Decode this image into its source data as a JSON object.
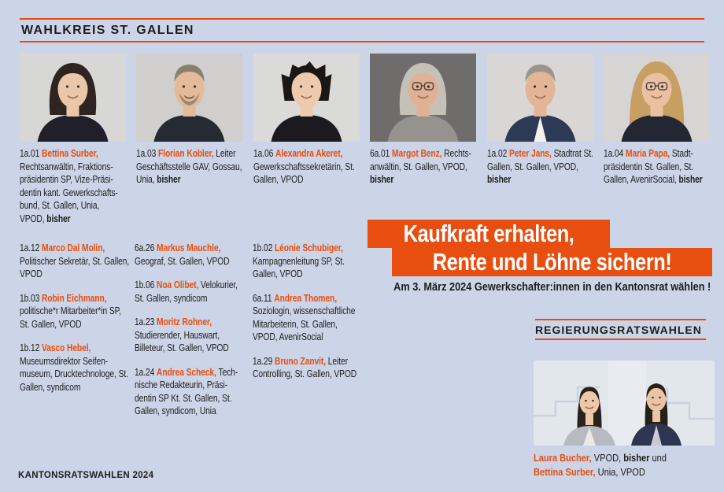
{
  "page": {
    "background_color": "#ccd4e7",
    "accent_color": "#e84e0f",
    "text_color": "#1d1d1b"
  },
  "header": {
    "title": "WAHLKREIS ST. GALLEN"
  },
  "candidates": [
    {
      "number": "1a.01",
      "name": "Bettina Surber,",
      "text": "Rechtsanwältin, Fraktions­präsidentin SP, Vize-Präsi­dentin kant. Gewerkschafts­bund, St. Gallen, Unia, VPOD,",
      "bold": "bisher",
      "portrait": {
        "style": "bob",
        "bg": "#d7d7d5",
        "hair": "#2e2520",
        "skin": "#ecc6a9",
        "shirt": "#20202a"
      }
    },
    {
      "number": "1a.03",
      "name": "Florian Kobler,",
      "text": "Leiter Geschäftsstelle GAV, Gossau, Unia,",
      "bold": "bisher",
      "portrait": {
        "style": "short",
        "beard": true,
        "bg": "#d0cfcd",
        "hair": "#8b8070",
        "skin": "#e5ba98",
        "shirt": "#262a33"
      }
    },
    {
      "number": "1a.06",
      "name": "Alexandra Akeret,",
      "text": "Gewerkschaftssekretärin, St. Gallen, VPOD",
      "bold": "",
      "portrait": {
        "style": "spiky",
        "bg": "#dadad8",
        "hair": "#1a1714",
        "skin": "#edc9ad",
        "shirt": "#1b1b1f"
      }
    },
    {
      "number": "6a.01",
      "name": "Margot Benz,",
      "text": "Rechts­anwältin, St. Gallen, VPOD,",
      "bold": "bisher",
      "portrait": {
        "style": "graybob",
        "glasses": true,
        "bg": "#6f6d6b",
        "hair": "#c6c0b6",
        "skin": "#e0b194",
        "shirt": "#96928d"
      }
    },
    {
      "number": "1a.02",
      "name": "Peter Jans,",
      "text": "Stadtrat St. Gallen, St. Gallen, VPOD,",
      "bold": "bisher",
      "portrait": {
        "style": "short",
        "bg": "#d8d7d5",
        "hair": "#9b948a",
        "skin": "#e3b496",
        "shirt": "#2c3a56",
        "collar": "#f2f1ef"
      }
    },
    {
      "number": "1a.04",
      "name": "Maria Papa,",
      "text": "Stadt­präsidentin St. Gallen, St. Gallen, AvenirSocial,",
      "bold": "bisher",
      "portrait": {
        "style": "long",
        "glasses": true,
        "bg": "#d6d5d3",
        "hair": "#c79f62",
        "skin": "#eac0a0",
        "shirt": "#232734"
      }
    }
  ],
  "lists": [
    {
      "entries": [
        {
          "number": "1a.12",
          "name": "Marco Dal Molin,",
          "text": "Politischer Sekretär, St. Gallen, VPOD",
          "bold": ""
        },
        {
          "number": "1b.03",
          "name": "Robin Eichmann,",
          "text": "politische*r Mitarbeiter*in SP, St. Gallen, VPOD",
          "bold": ""
        },
        {
          "number": "1b.12",
          "name": "Vasco Hebel,",
          "text": "Museumsdirektor Seifen­museum, Drucktechnologe, St. Gallen, syndicom",
          "bold": ""
        }
      ]
    },
    {
      "entries": [
        {
          "number": "6a.26",
          "name": "Markus Mauchle,",
          "text": "Geograf, St. Gallen, VPOD",
          "bold": ""
        },
        {
          "number": "1b.06",
          "name": "Noa Olibet,",
          "text": "Velokurier, St. Gallen, syndicom",
          "bold": ""
        },
        {
          "number": "1a.23",
          "name": "Moritz Rohner,",
          "text": "Studierender, Hauswart, Billeteur, St. Gallen, VPOD",
          "bold": ""
        },
        {
          "number": "1a.24",
          "name": "Andrea Scheck,",
          "text": "Tech­nische Redakteurin, Präsi­dentin SP Kt. St. Gallen, St. Gallen, syndicom, Unia",
          "bold": ""
        }
      ]
    },
    {
      "entries": [
        {
          "number": "1b.02",
          "name": "Léonie Schubiger,",
          "text": "Kampagnenleitung SP, St. Gallen, VPOD",
          "bold": ""
        },
        {
          "number": "6a.11",
          "name": "Andrea Thomen,",
          "text": "Soziologin, wissenschaftliche Mitarbeiterin, St. Gallen, VPOD, AvenirSocial",
          "bold": ""
        },
        {
          "number": "1a.29",
          "name": "Bruno Zanvit,",
          "text": "Leiter Controlling, St. Gallen, VPOD",
          "bold": ""
        }
      ]
    }
  ],
  "slogan": {
    "line1": "Kaufkraft erhalten,",
    "line2": "Rente und Löhne sichern!",
    "subline": "Am 3. März 2024 Gewerkschafter:innen in den Kantonsrat wählen !"
  },
  "regierungsrat": {
    "title": "REGIERUNGSRATSWAHLEN",
    "photo": {
      "style": "duo",
      "bg": "#e2e7ec",
      "persons": [
        {
          "hair": "#2b211c",
          "skin": "#eccaa9",
          "jacket": "#b7bac1",
          "top": "#edeae6"
        },
        {
          "hair": "#262019",
          "skin": "#eac5a5",
          "jacket": "#2e3550",
          "top": "#c9cbd1"
        }
      ]
    },
    "caption_lines": [
      [
        {
          "text": "Laura Bucher,",
          "style": "name"
        },
        {
          "text": " VPOD, ",
          "style": "plain"
        },
        {
          "text": "bisher",
          "style": "bold"
        },
        {
          "text": " und",
          "style": "plain"
        }
      ],
      [
        {
          "text": "Bettina Surber,",
          "style": "name"
        },
        {
          "text": " Unia, VPOD",
          "style": "plain"
        }
      ]
    ]
  },
  "footer": {
    "label": "KANTONSRATSWAHLEN 2024"
  }
}
